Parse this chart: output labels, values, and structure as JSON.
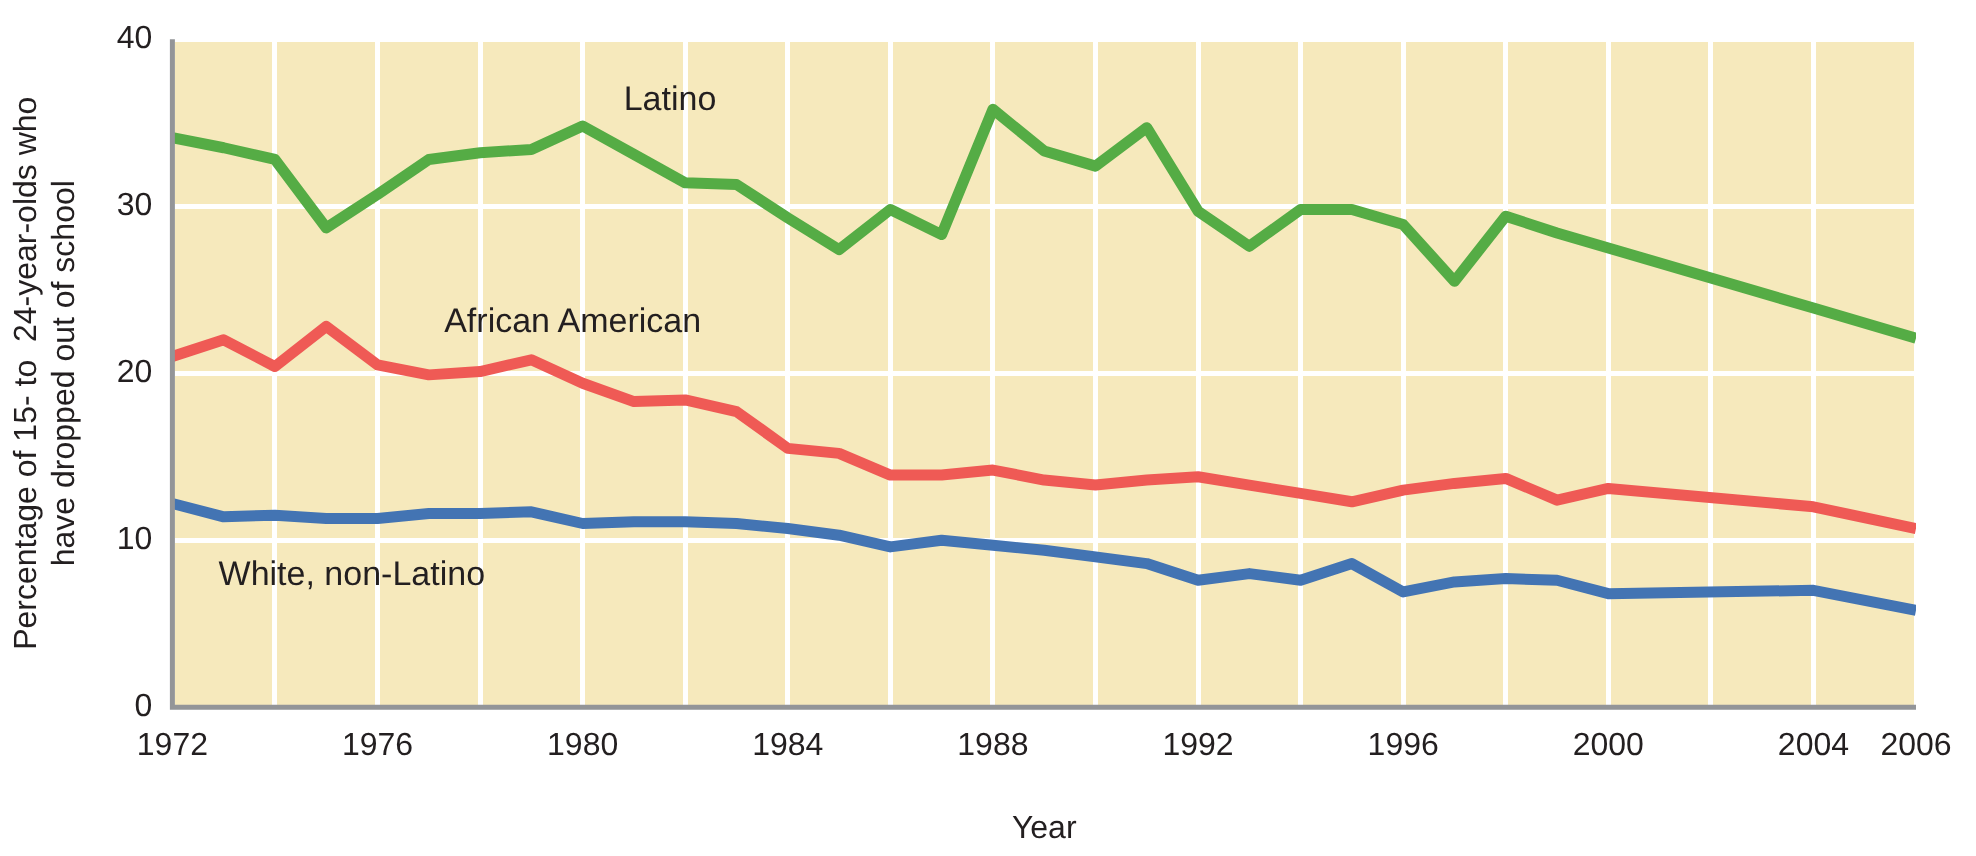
{
  "chart_data": {
    "type": "line",
    "xlabel": "Year",
    "ylabel": "Percentage of 15- to  24-year-olds who\nhave dropped out of school",
    "x": [
      1972,
      1973,
      1974,
      1975,
      1976,
      1977,
      1978,
      1979,
      1980,
      1981,
      1982,
      1983,
      1984,
      1985,
      1986,
      1987,
      1988,
      1989,
      1990,
      1991,
      1992,
      1993,
      1994,
      1995,
      1996,
      1997,
      1998,
      1999,
      2000,
      2004,
      2006
    ],
    "series": [
      {
        "name": "Latino",
        "color": "#55ac45",
        "values": [
          34.1,
          33.5,
          32.8,
          28.7,
          30.7,
          32.8,
          33.2,
          33.4,
          34.8,
          33.1,
          31.4,
          31.3,
          29.3,
          27.4,
          29.8,
          28.3,
          35.8,
          33.3,
          32.4,
          34.7,
          29.7,
          27.6,
          29.8,
          29.8,
          28.9,
          25.5,
          29.4,
          28.4,
          27.5,
          23.9,
          22.1
        ]
      },
      {
        "name": "African American",
        "color": "#ef5a55",
        "values": [
          21.0,
          22.0,
          20.4,
          22.8,
          20.5,
          19.9,
          20.1,
          20.8,
          19.4,
          18.3,
          18.4,
          17.7,
          15.5,
          15.2,
          13.9,
          13.9,
          14.2,
          13.6,
          13.3,
          13.6,
          13.8,
          13.3,
          12.8,
          12.3,
          13.0,
          13.4,
          13.7,
          12.4,
          13.1,
          12.0,
          10.7
        ]
      },
      {
        "name": "White, non-Latino",
        "color": "#4374b3",
        "values": [
          12.2,
          11.4,
          11.5,
          11.3,
          11.3,
          11.6,
          11.6,
          11.7,
          11.0,
          11.1,
          11.1,
          11.0,
          10.7,
          10.3,
          9.6,
          10.0,
          9.7,
          9.4,
          9.0,
          8.6,
          7.6,
          8.0,
          7.6,
          8.6,
          6.9,
          7.5,
          7.7,
          7.6,
          6.8,
          7.0,
          5.8
        ]
      }
    ],
    "xlim": [
      1972,
      2006
    ],
    "xticks": [
      1972,
      {
        "value": 1974,
        "label": null
      },
      1976,
      {
        "value": 1978,
        "label": null
      },
      1980,
      {
        "value": 1982,
        "label": null
      },
      1984,
      {
        "value": 1986,
        "label": null
      },
      1988,
      {
        "value": 1990,
        "label": null
      },
      1992,
      {
        "value": 1994,
        "label": null
      },
      1996,
      {
        "value": 1998,
        "label": null
      },
      2000,
      {
        "value": 2002,
        "label": null
      },
      2004,
      2006
    ],
    "ylim": [
      0,
      40
    ],
    "yticks": [
      0,
      10,
      20,
      30,
      40
    ],
    "grid": true,
    "legend": false,
    "marker": "none",
    "line_style": "solid"
  }
}
